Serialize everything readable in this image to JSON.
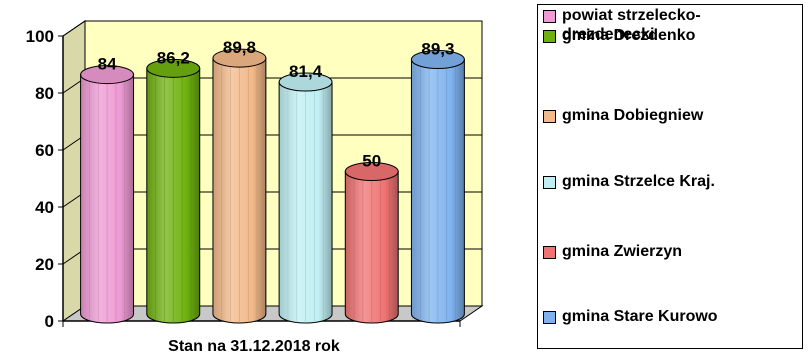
{
  "chart_data": {
    "type": "bar",
    "categories": [
      "powiat strzelecko-drezdenecki",
      "gmina Drezdenko",
      "gmina Dobiegniew",
      "gmina Strzelce Kraj.",
      "gmina Zwierzyn",
      "gmina Stare Kurowo"
    ],
    "values": [
      84,
      86.2,
      89.8,
      81.4,
      50,
      89.3
    ],
    "data_labels": [
      "84",
      "86,2",
      "89,8",
      "81,4",
      "50",
      "89,3"
    ],
    "colors": [
      "#ee9ad3",
      "#6fb10f",
      "#f2b98a",
      "#bfeff3",
      "#ef7372",
      "#7fb3ef"
    ],
    "xlabel": "Stan na 31.12.2018 rok",
    "ylabel": "",
    "ylim": [
      0,
      100
    ],
    "yticks": [
      0,
      20,
      40,
      60,
      80,
      100
    ],
    "grid": true,
    "legend_position": "right",
    "wall_color": "#ffffc0"
  },
  "legend": {
    "items": [
      {
        "label_lines": [
          "powiat strzelecko-",
          "drezdenecki"
        ],
        "color": "#ee9ad3"
      },
      {
        "label_lines": [
          "gmina Drezdenko"
        ],
        "color": "#6fb10f"
      },
      {
        "label_lines": [
          "gmina Dobiegniew"
        ],
        "color": "#f2b98a"
      },
      {
        "label_lines": [
          "gmina Strzelce Kraj."
        ],
        "color": "#bfeff3"
      },
      {
        "label_lines": [
          "gmina Zwierzyn"
        ],
        "color": "#ef7372"
      },
      {
        "label_lines": [
          "gmina Stare Kurowo"
        ],
        "color": "#7fb3ef"
      }
    ]
  }
}
